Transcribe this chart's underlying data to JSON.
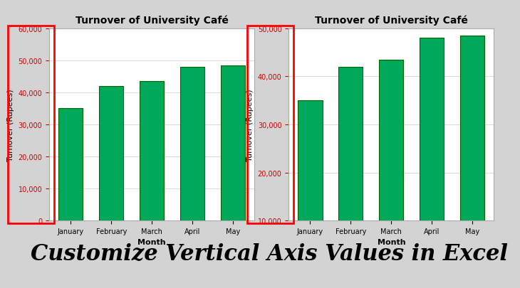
{
  "title": "Turnover of University Café",
  "months": [
    "January",
    "February",
    "March",
    "April",
    "May"
  ],
  "values": [
    35000,
    42000,
    43500,
    48000,
    48500
  ],
  "bar_color": "#00A859",
  "bar_edge_color": "#006400",
  "ylabel": "Turnover (Rupees)",
  "xlabel": "Month",
  "chart1_ylim": [
    0,
    60000
  ],
  "chart1_yticks": [
    0,
    10000,
    20000,
    30000,
    40000,
    50000,
    60000
  ],
  "chart2_ylim": [
    10000,
    50000
  ],
  "chart2_yticks": [
    10000,
    20000,
    30000,
    40000,
    50000
  ],
  "ytick_color": "#CC0000",
  "banner_text": "Customize Vertical Axis Values in Excel",
  "banner_bg": "#00FF00",
  "banner_text_color": "#000000",
  "bg_color": "#D3D3D3",
  "chart_bg": "#FFFFFF",
  "excel_bg": "#F2F2F2",
  "red_box_color": "#FF0000",
  "title_fontsize": 10,
  "axis_label_fontsize": 8,
  "tick_fontsize": 7,
  "banner_fontsize": 22
}
